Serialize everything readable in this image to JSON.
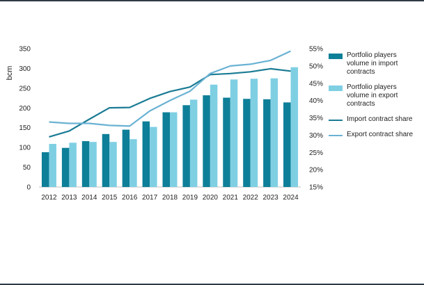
{
  "colors": {
    "frame": "#2f3b46",
    "import_bar": "#0e7f98",
    "export_bar": "#7fcfe3",
    "import_line": "#1a7b94",
    "export_line": "#6ab2d3",
    "axis": "#bfbfbf"
  },
  "chart_data": {
    "type": "bar",
    "categories": [
      "2012",
      "2013",
      "2014",
      "2015",
      "2016",
      "2017",
      "2018",
      "2019",
      "2020",
      "2021",
      "2022",
      "2023",
      "2024"
    ],
    "ylabel": "bcm",
    "ylim": [
      0,
      350
    ],
    "y_ticks": [
      "0",
      "50",
      "100",
      "150",
      "200",
      "250",
      "300",
      "350"
    ],
    "y2lim": [
      15,
      55
    ],
    "y2_ticks": [
      "15%",
      "20%",
      "25%",
      "30%",
      "35%",
      "40%",
      "45%",
      "50%",
      "55%"
    ],
    "legend_placement": "right",
    "grid": false,
    "series": [
      {
        "name": "Portfolio players volume in import contracts",
        "type": "bar",
        "axis": "left",
        "values": [
          88,
          99,
          116,
          134,
          145,
          166,
          189,
          207,
          232,
          226,
          223,
          222,
          214
        ]
      },
      {
        "name": "Portfolio players volume in export contracts",
        "type": "bar",
        "axis": "left",
        "values": [
          109,
          112,
          114,
          114,
          121,
          152,
          189,
          221,
          259,
          272,
          274,
          275,
          303
        ]
      },
      {
        "name": "Import contract share",
        "type": "line",
        "axis": "right",
        "values": [
          29.5,
          31.2,
          34.6,
          37.9,
          38.0,
          40.6,
          42.6,
          43.9,
          47.5,
          47.8,
          48.3,
          49.2,
          48.5
        ]
      },
      {
        "name": "Export contract share",
        "type": "line",
        "axis": "right",
        "values": [
          33.8,
          33.4,
          33.4,
          32.8,
          32.6,
          37.0,
          40.0,
          42.7,
          47.8,
          50.0,
          50.5,
          51.6,
          54.3
        ]
      }
    ]
  }
}
